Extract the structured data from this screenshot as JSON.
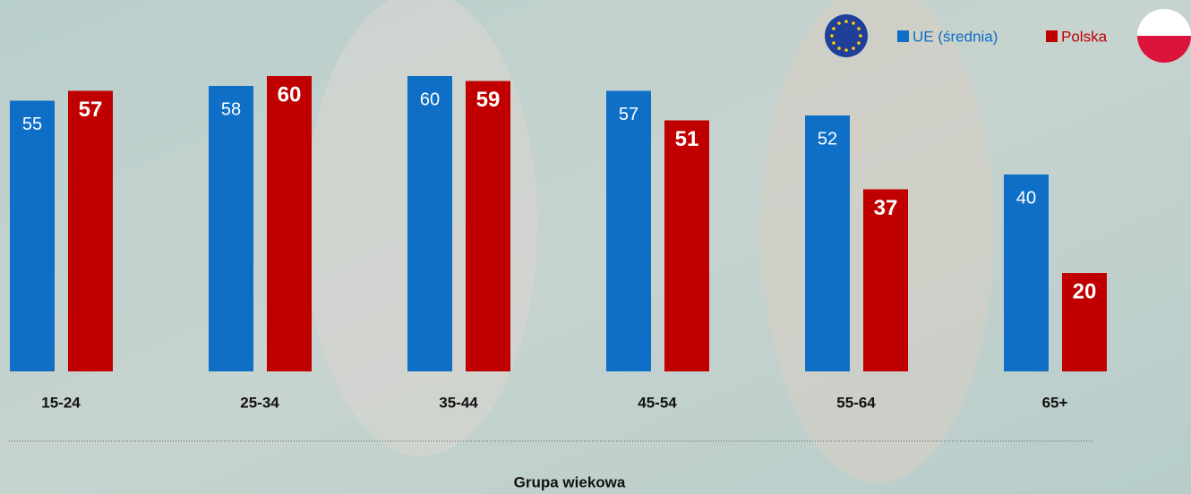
{
  "chart_data": {
    "type": "bar",
    "x_label": "Grupa wiekowa",
    "categories": [
      "15-24",
      "25-34",
      "35-44",
      "45-54",
      "55-64",
      "65+"
    ],
    "series": [
      {
        "name": "UE (średnia)",
        "color": "#0f6fc6",
        "values": [
          55,
          58,
          60,
          57,
          52,
          40
        ]
      },
      {
        "name": "Polska",
        "color": "#c00000",
        "values": [
          57,
          60,
          59,
          51,
          37,
          20
        ]
      }
    ],
    "ylim": [
      0,
      75
    ]
  }
}
